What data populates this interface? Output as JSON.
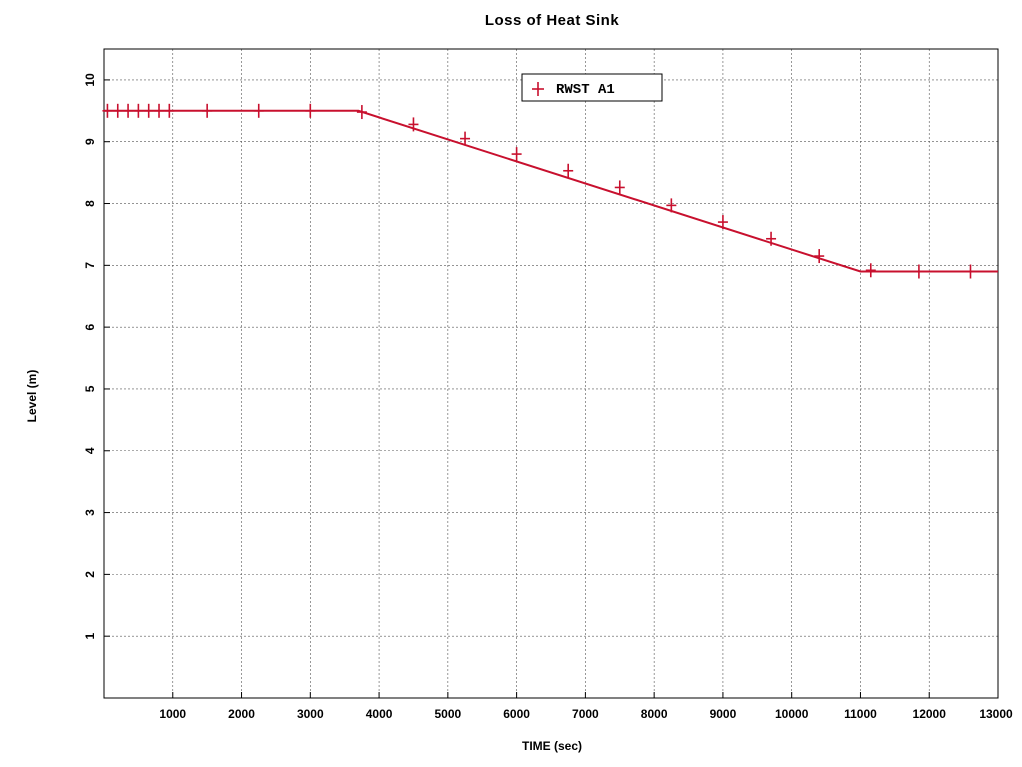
{
  "chart_data": {
    "type": "line",
    "title": "Loss of Heat Sink",
    "xlabel": "TIME (sec)",
    "ylabel": "Level (m)",
    "xlim": [
      0,
      13000
    ],
    "ylim": [
      0,
      10.5
    ],
    "x_ticks": [
      1000,
      2000,
      3000,
      4000,
      5000,
      6000,
      7000,
      8000,
      9000,
      10000,
      11000,
      12000,
      13000
    ],
    "y_ticks": [
      1,
      2,
      3,
      4,
      5,
      6,
      7,
      8,
      9,
      10
    ],
    "grid": true,
    "legend_position": "top-center",
    "series": [
      {
        "name": "RWST A1",
        "color": "#c8102e",
        "marker": "plus",
        "line": [
          [
            0,
            9.5
          ],
          [
            3700,
            9.5
          ],
          [
            11000,
            6.9
          ],
          [
            13000,
            6.9
          ]
        ],
        "markers": [
          [
            50,
            9.5
          ],
          [
            200,
            9.5
          ],
          [
            350,
            9.5
          ],
          [
            500,
            9.5
          ],
          [
            650,
            9.5
          ],
          [
            800,
            9.5
          ],
          [
            950,
            9.5
          ],
          [
            1500,
            9.5
          ],
          [
            2250,
            9.5
          ],
          [
            3000,
            9.5
          ],
          [
            3750,
            9.48
          ],
          [
            4500,
            9.28
          ],
          [
            5250,
            9.05
          ],
          [
            6000,
            8.8
          ],
          [
            6750,
            8.53
          ],
          [
            7500,
            8.26
          ],
          [
            8250,
            7.97
          ],
          [
            9000,
            7.7
          ],
          [
            9700,
            7.43
          ],
          [
            10400,
            7.15
          ],
          [
            11150,
            6.92
          ],
          [
            11850,
            6.9
          ],
          [
            12600,
            6.9
          ]
        ]
      }
    ]
  }
}
